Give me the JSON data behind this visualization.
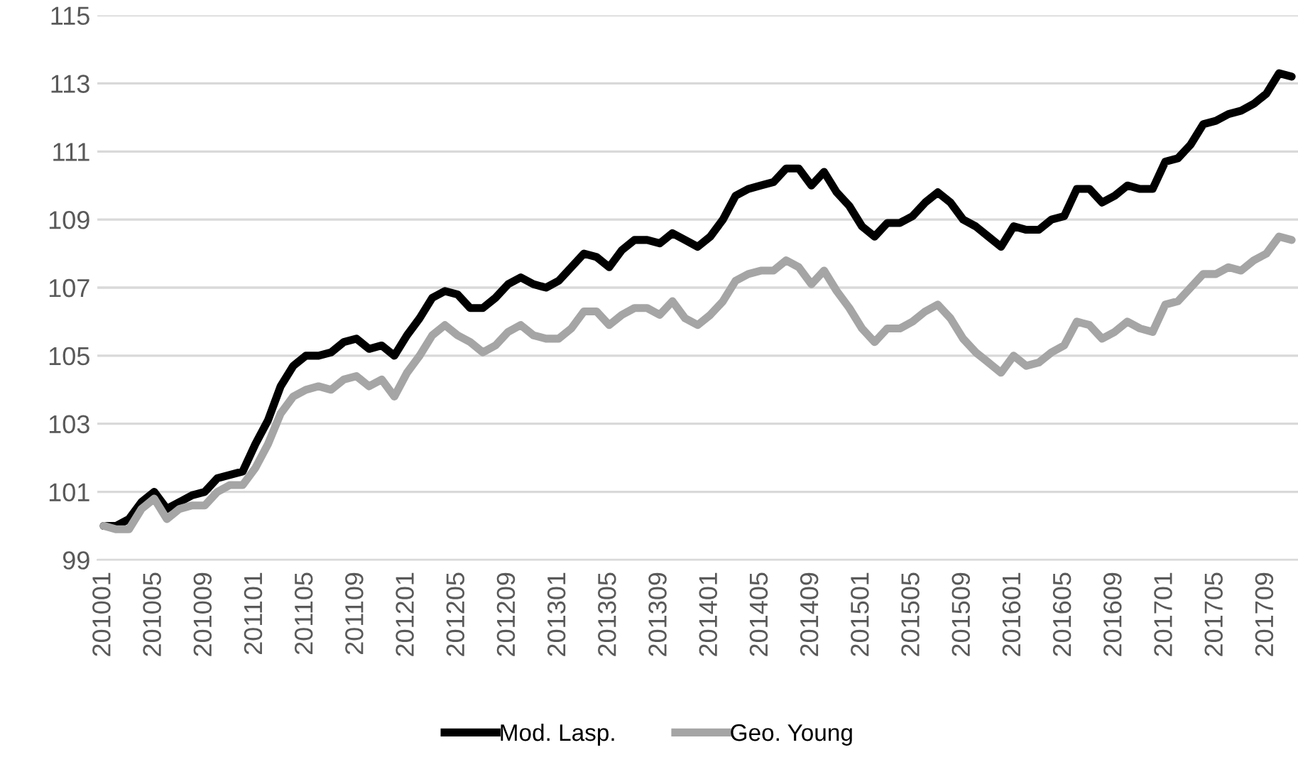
{
  "chart_data": {
    "type": "line",
    "categories": [
      "201001",
      null,
      null,
      null,
      "201005",
      null,
      null,
      null,
      "201009",
      null,
      null,
      null,
      "201101",
      null,
      null,
      null,
      "201105",
      null,
      null,
      null,
      "201109",
      null,
      null,
      null,
      "201201",
      null,
      null,
      null,
      "201205",
      null,
      null,
      null,
      "201209",
      null,
      null,
      null,
      "201301",
      null,
      null,
      null,
      "201305",
      null,
      null,
      null,
      "201309",
      null,
      null,
      null,
      "201401",
      null,
      null,
      null,
      "201405",
      null,
      null,
      null,
      "201409",
      null,
      null,
      null,
      "201501",
      null,
      null,
      null,
      "201505",
      null,
      null,
      null,
      "201509",
      null,
      null,
      null,
      "201601",
      null,
      null,
      null,
      "201605",
      null,
      null,
      null,
      "201609",
      null,
      null,
      null,
      "201701",
      null,
      null,
      null,
      "201705",
      null,
      null,
      null,
      "201709",
      null,
      null
    ],
    "series": [
      {
        "name": "Mod. Lasp.",
        "color": "#000000",
        "values": [
          100.0,
          100.0,
          100.2,
          100.7,
          101.0,
          100.5,
          100.7,
          100.9,
          101.0,
          101.4,
          101.5,
          101.6,
          102.4,
          103.1,
          104.1,
          104.7,
          105.0,
          105.0,
          105.1,
          105.4,
          105.5,
          105.2,
          105.3,
          105.0,
          105.6,
          106.1,
          106.7,
          106.9,
          106.8,
          106.4,
          106.4,
          106.7,
          107.1,
          107.3,
          107.1,
          107.0,
          107.2,
          107.6,
          108.0,
          107.9,
          107.6,
          108.1,
          108.4,
          108.4,
          108.3,
          108.6,
          108.4,
          108.2,
          108.5,
          109.0,
          109.7,
          109.9,
          110.0,
          110.1,
          110.5,
          110.5,
          110.0,
          110.4,
          109.8,
          109.4,
          108.8,
          108.5,
          108.9,
          108.9,
          109.1,
          109.5,
          109.8,
          109.5,
          109.0,
          108.8,
          108.5,
          108.2,
          108.8,
          108.7,
          108.7,
          109.0,
          109.1,
          109.9,
          109.9,
          109.5,
          109.7,
          110.0,
          109.9,
          109.9,
          110.7,
          110.8,
          111.2,
          111.8,
          111.9,
          112.1,
          112.2,
          112.4,
          112.7,
          113.3,
          113.2
        ]
      },
      {
        "name": "Geo. Young",
        "color": "#a5a5a5",
        "values": [
          100.0,
          99.9,
          99.9,
          100.5,
          100.8,
          100.2,
          100.5,
          100.6,
          100.6,
          101.0,
          101.2,
          101.2,
          101.7,
          102.4,
          103.3,
          103.8,
          104.0,
          104.1,
          104.0,
          104.3,
          104.4,
          104.1,
          104.3,
          103.8,
          104.5,
          105.0,
          105.6,
          105.9,
          105.6,
          105.4,
          105.1,
          105.3,
          105.7,
          105.9,
          105.6,
          105.5,
          105.5,
          105.8,
          106.3,
          106.3,
          105.9,
          106.2,
          106.4,
          106.4,
          106.2,
          106.6,
          106.1,
          105.9,
          106.2,
          106.6,
          107.2,
          107.4,
          107.5,
          107.5,
          107.8,
          107.6,
          107.1,
          107.5,
          106.9,
          106.4,
          105.8,
          105.4,
          105.8,
          105.8,
          106.0,
          106.3,
          106.5,
          106.1,
          105.5,
          105.1,
          104.8,
          104.5,
          105.0,
          104.7,
          104.8,
          105.1,
          105.3,
          106.0,
          105.9,
          105.5,
          105.7,
          106.0,
          105.8,
          105.7,
          106.5,
          106.6,
          107.0,
          107.4,
          107.4,
          107.6,
          107.5,
          107.8,
          108.0,
          108.5,
          108.4
        ]
      }
    ],
    "ylim": [
      99,
      115
    ],
    "yticks": [
      99,
      101,
      103,
      105,
      107,
      109,
      111,
      113,
      115
    ],
    "grid": "y",
    "legend": "bottom",
    "marker": "none",
    "line_style": "solid"
  }
}
